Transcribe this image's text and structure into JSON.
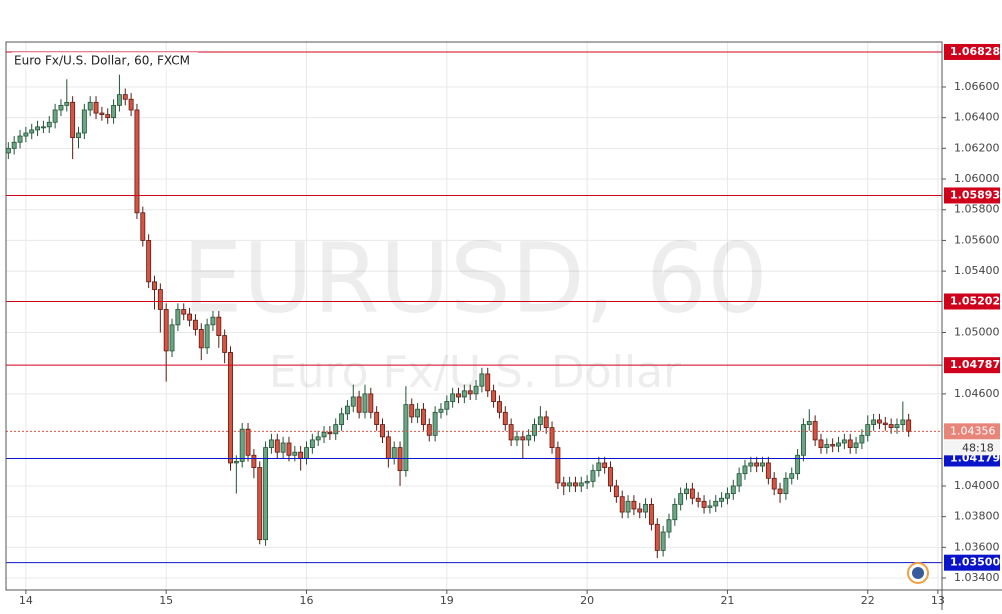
{
  "chart_data": {
    "type": "candlestick",
    "title": "Euro Fx/U.S. Dollar, 60, FXCM",
    "watermark": "EURUSD, 60",
    "watermark_subtitle": "Euro Fx/U.S. Dollar",
    "countdown": "48:18",
    "up_color": "#6ba583",
    "up_border": "#225437",
    "down_color": "#d75442",
    "down_border": "#5b1a13",
    "grid": true,
    "xlim": [
      -0.4,
      159.7
    ],
    "ylim": [
      1.03322,
      1.06893
    ],
    "yticks": [
      {
        "value": 1.066,
        "label": "1.06600"
      },
      {
        "value": 1.064,
        "label": "1.06400"
      },
      {
        "value": 1.062,
        "label": "1.06200"
      },
      {
        "value": 1.06,
        "label": "1.06000"
      },
      {
        "value": 1.058,
        "label": "1.05800"
      },
      {
        "value": 1.056,
        "label": "1.05600"
      },
      {
        "value": 1.054,
        "label": "1.05400"
      },
      {
        "value": 1.05,
        "label": "1.05000"
      },
      {
        "value": 1.046,
        "label": "1.04600"
      },
      {
        "value": 1.04,
        "label": "1.04000"
      },
      {
        "value": 1.038,
        "label": "1.03800"
      },
      {
        "value": 1.036,
        "label": "1.03600"
      },
      {
        "value": 1.034,
        "label": "1.03400"
      }
    ],
    "xticks": [
      {
        "value": 3,
        "label": "14"
      },
      {
        "value": 27,
        "label": "15"
      },
      {
        "value": 51,
        "label": "16"
      },
      {
        "value": 75,
        "label": "19"
      },
      {
        "value": 99,
        "label": "20"
      },
      {
        "value": 123,
        "label": "21"
      },
      {
        "value": 147,
        "label": "22"
      },
      {
        "value": 159,
        "label": "13"
      }
    ],
    "hlines": [
      {
        "value": 1.06828,
        "color": "#d0021b"
      },
      {
        "value": 1.05893,
        "color": "#d0021b"
      },
      {
        "value": 1.05202,
        "color": "#d0021b"
      },
      {
        "value": 1.04787,
        "color": "#d0021b"
      },
      {
        "value": 1.04179,
        "color": "#0a14c8"
      },
      {
        "value": 1.035,
        "label": "1.03500",
        "color": "#0a14c8"
      }
    ],
    "x": [
      0,
      1,
      2,
      3,
      4,
      5,
      6,
      7,
      8,
      9,
      10,
      11,
      12,
      13,
      14,
      15,
      16,
      17,
      18,
      19,
      20,
      21,
      22,
      23,
      24,
      25,
      26,
      27,
      28,
      29,
      30,
      31,
      32,
      33,
      34,
      35,
      36,
      37,
      38,
      39,
      40,
      41,
      42,
      43,
      44,
      45,
      46,
      47,
      48,
      49,
      50,
      51,
      52,
      53,
      54,
      55,
      56,
      57,
      58,
      59,
      60,
      61,
      62,
      63,
      64,
      65,
      66,
      67,
      68,
      69,
      70,
      71,
      72,
      73,
      74,
      75,
      76,
      77,
      78,
      79,
      80,
      81,
      82,
      83,
      84,
      85,
      86,
      87,
      88,
      89,
      90,
      91,
      92,
      93,
      94,
      95,
      96,
      97,
      98,
      99,
      100,
      101,
      102,
      103,
      104,
      105,
      106,
      107,
      108,
      109,
      110,
      111,
      112,
      113,
      114,
      115,
      116,
      117,
      118,
      119,
      120,
      121,
      122,
      123,
      124,
      125,
      126,
      127,
      128,
      129,
      130,
      131,
      132,
      133,
      134,
      135,
      136,
      137,
      138,
      139,
      140,
      141,
      142,
      143,
      144,
      145,
      146,
      147,
      148,
      149,
      150,
      151,
      152,
      153,
      154
    ],
    "open": [
      1.0617,
      1.062,
      1.0624,
      1.0628,
      1.063,
      1.0632,
      1.0634,
      1.0634,
      1.0637,
      1.0645,
      1.0648,
      1.065,
      1.0627,
      1.063,
      1.0645,
      1.065,
      1.0643,
      1.0642,
      1.064,
      1.0648,
      1.0655,
      1.0652,
      1.0645,
      1.0578,
      1.056,
      1.0533,
      1.0528,
      1.0515,
      1.0488,
      1.0505,
      1.0515,
      1.0512,
      1.0508,
      1.0502,
      1.049,
      1.0505,
      1.051,
      1.0498,
      1.0487,
      1.0415,
      1.0416,
      1.0437,
      1.042,
      1.0412,
      1.0365,
      1.0425,
      1.043,
      1.0422,
      1.0428,
      1.042,
      1.0422,
      1.0418,
      1.0425,
      1.043,
      1.0432,
      1.0435,
      1.0434,
      1.044,
      1.0447,
      1.0452,
      1.0458,
      1.0448,
      1.046,
      1.0448,
      1.044,
      1.0432,
      1.0418,
      1.0425,
      1.041,
      1.0453,
      1.0445,
      1.045,
      1.044,
      1.0433,
      1.0448,
      1.045,
      1.0455,
      1.046,
      1.0458,
      1.0462,
      1.046,
      1.0465,
      1.0473,
      1.0462,
      1.0455,
      1.0448,
      1.044,
      1.043,
      1.0432,
      1.043,
      1.0433,
      1.044,
      1.0445,
      1.0438,
      1.0425,
      1.0402,
      1.04,
      1.0402,
      1.04,
      1.0402,
      1.0403,
      1.041,
      1.0415,
      1.0412,
      1.04,
      1.0393,
      1.0383,
      1.039,
      1.0385,
      1.0383,
      1.0388,
      1.0375,
      1.0358,
      1.037,
      1.0378,
      1.0388,
      1.0395,
      1.0398,
      1.0392,
      1.039,
      1.0386,
      1.0387,
      1.039,
      1.0392,
      1.0395,
      1.04,
      1.0408,
      1.0413,
      1.0415,
      1.0413,
      1.0415,
      1.0405,
      1.0398,
      1.0395,
      1.0405,
      1.0408,
      1.042,
      1.044,
      1.0442,
      1.043,
      1.0425,
      1.0427,
      1.0426,
      1.0428,
      1.043,
      1.0425,
      1.0428,
      1.0433,
      1.044,
      1.0443,
      1.0441,
      1.044,
      1.0438,
      1.044,
      1.0443
    ],
    "high": [
      1.0624,
      1.0628,
      1.0632,
      1.0634,
      1.0636,
      1.0638,
      1.0638,
      1.0641,
      1.0649,
      1.0652,
      1.0665,
      1.0654,
      1.0634,
      1.0649,
      1.0654,
      1.0654,
      1.0647,
      1.0646,
      1.0652,
      1.0668,
      1.0659,
      1.0656,
      1.0649,
      1.0582,
      1.0564,
      1.0537,
      1.0532,
      1.0519,
      1.0509,
      1.0519,
      1.0519,
      1.0516,
      1.0512,
      1.0506,
      1.0509,
      1.0514,
      1.0514,
      1.0502,
      1.0491,
      1.042,
      1.0441,
      1.0441,
      1.0424,
      1.0416,
      1.0429,
      1.0434,
      1.0434,
      1.0432,
      1.0432,
      1.0426,
      1.0426,
      1.0429,
      1.0434,
      1.0436,
      1.0439,
      1.0439,
      1.0444,
      1.0451,
      1.0456,
      1.0466,
      1.0462,
      1.0466,
      1.0464,
      1.0452,
      1.0444,
      1.0436,
      1.0429,
      1.0429,
      1.0465,
      1.0457,
      1.0454,
      1.0454,
      1.0444,
      1.0452,
      1.0454,
      1.0459,
      1.0464,
      1.0464,
      1.0466,
      1.0466,
      1.0469,
      1.0477,
      1.0477,
      1.0466,
      1.0459,
      1.0452,
      1.0444,
      1.0436,
      1.0436,
      1.0437,
      1.0444,
      1.0452,
      1.0449,
      1.0442,
      1.0429,
      1.0406,
      1.0406,
      1.0406,
      1.0406,
      1.0407,
      1.0414,
      1.0419,
      1.0419,
      1.0416,
      1.0404,
      1.0397,
      1.0394,
      1.0394,
      1.0389,
      1.0392,
      1.0392,
      1.0379,
      1.0374,
      1.0382,
      1.0392,
      1.0399,
      1.0402,
      1.0402,
      1.0396,
      1.0394,
      1.0391,
      1.0394,
      1.0396,
      1.0399,
      1.0404,
      1.0412,
      1.0417,
      1.0419,
      1.0419,
      1.0419,
      1.0419,
      1.0409,
      1.0402,
      1.0409,
      1.0412,
      1.0424,
      1.0444,
      1.045,
      1.0446,
      1.0434,
      1.0431,
      1.0431,
      1.0432,
      1.0434,
      1.0434,
      1.0432,
      1.0437,
      1.0446,
      1.0447,
      1.0447,
      1.0445,
      1.0444,
      1.0444,
      1.0455,
      1.0447
    ],
    "low": [
      1.0613,
      1.0616,
      1.062,
      1.0624,
      1.0626,
      1.0628,
      1.063,
      1.063,
      1.0633,
      1.0641,
      1.0644,
      1.0613,
      1.062,
      1.0626,
      1.0641,
      1.0639,
      1.0638,
      1.0636,
      1.0636,
      1.0644,
      1.0648,
      1.0641,
      1.0574,
      1.0556,
      1.0529,
      1.0515,
      1.05,
      1.0468,
      1.0484,
      1.0501,
      1.0508,
      1.0504,
      1.0498,
      1.0482,
      1.0486,
      1.0501,
      1.049,
      1.048,
      1.041,
      1.0395,
      1.0412,
      1.0416,
      1.0405,
      1.0362,
      1.0361,
      1.0421,
      1.0418,
      1.0418,
      1.0416,
      1.0416,
      1.041,
      1.0414,
      1.0421,
      1.0426,
      1.0428,
      1.043,
      1.043,
      1.0436,
      1.0443,
      1.0448,
      1.0444,
      1.0444,
      1.0444,
      1.0436,
      1.0428,
      1.0412,
      1.0414,
      1.04,
      1.0406,
      1.0441,
      1.0441,
      1.0436,
      1.0429,
      1.0429,
      1.0444,
      1.0446,
      1.0451,
      1.0454,
      1.0454,
      1.0456,
      1.0456,
      1.0461,
      1.0458,
      1.0451,
      1.0444,
      1.0436,
      1.0426,
      1.0426,
      1.0418,
      1.0426,
      1.0429,
      1.0436,
      1.0434,
      1.0421,
      1.0398,
      1.0394,
      1.0396,
      1.0396,
      1.0396,
      1.0398,
      1.0399,
      1.0406,
      1.0408,
      1.0396,
      1.0389,
      1.0379,
      1.0379,
      1.0381,
      1.0379,
      1.0379,
      1.0371,
      1.0353,
      1.0354,
      1.0366,
      1.0374,
      1.0384,
      1.0391,
      1.0388,
      1.0386,
      1.0382,
      1.0382,
      1.0383,
      1.0386,
      1.0388,
      1.0391,
      1.0396,
      1.0404,
      1.0409,
      1.0409,
      1.0409,
      1.0401,
      1.0394,
      1.0389,
      1.0391,
      1.0401,
      1.0404,
      1.0416,
      1.0436,
      1.0426,
      1.0421,
      1.0421,
      1.0422,
      1.0422,
      1.0424,
      1.0421,
      1.0421,
      1.0424,
      1.0429,
      1.0436,
      1.0437,
      1.0436,
      1.0434,
      1.0434,
      1.0436,
      1.0432
    ],
    "close": [
      1.062,
      1.0624,
      1.0628,
      1.063,
      1.0632,
      1.0634,
      1.0634,
      1.0637,
      1.0645,
      1.0648,
      1.065,
      1.0627,
      1.063,
      1.0645,
      1.065,
      1.0643,
      1.0642,
      1.064,
      1.0648,
      1.0655,
      1.0652,
      1.0645,
      1.0578,
      1.056,
      1.0533,
      1.0528,
      1.0515,
      1.0488,
      1.0505,
      1.0515,
      1.0512,
      1.0508,
      1.0502,
      1.049,
      1.0505,
      1.051,
      1.0498,
      1.0487,
      1.0415,
      1.0416,
      1.0437,
      1.042,
      1.0412,
      1.0365,
      1.0425,
      1.043,
      1.0422,
      1.0428,
      1.042,
      1.0422,
      1.0418,
      1.0425,
      1.043,
      1.0432,
      1.0435,
      1.0434,
      1.044,
      1.0447,
      1.0452,
      1.0458,
      1.0448,
      1.046,
      1.0448,
      1.044,
      1.0432,
      1.0418,
      1.0425,
      1.041,
      1.0453,
      1.0445,
      1.045,
      1.044,
      1.0433,
      1.0448,
      1.045,
      1.0455,
      1.046,
      1.0458,
      1.0462,
      1.046,
      1.0465,
      1.0473,
      1.0462,
      1.0455,
      1.0448,
      1.044,
      1.043,
      1.0432,
      1.043,
      1.0433,
      1.044,
      1.0445,
      1.0438,
      1.0425,
      1.0402,
      1.04,
      1.0402,
      1.04,
      1.0402,
      1.0403,
      1.041,
      1.0415,
      1.0412,
      1.04,
      1.0393,
      1.0383,
      1.039,
      1.0385,
      1.0383,
      1.0388,
      1.0375,
      1.0358,
      1.037,
      1.0378,
      1.0388,
      1.0395,
      1.0398,
      1.0392,
      1.039,
      1.0386,
      1.0387,
      1.039,
      1.0392,
      1.0395,
      1.04,
      1.0408,
      1.0413,
      1.0415,
      1.0413,
      1.0415,
      1.0405,
      1.0398,
      1.0395,
      1.0405,
      1.0408,
      1.042,
      1.044,
      1.0442,
      1.043,
      1.0425,
      1.0427,
      1.0426,
      1.0428,
      1.043,
      1.0425,
      1.0428,
      1.0433,
      1.044,
      1.0443,
      1.0441,
      1.044,
      1.0438,
      1.044,
      1.0443,
      1.04356
    ]
  }
}
